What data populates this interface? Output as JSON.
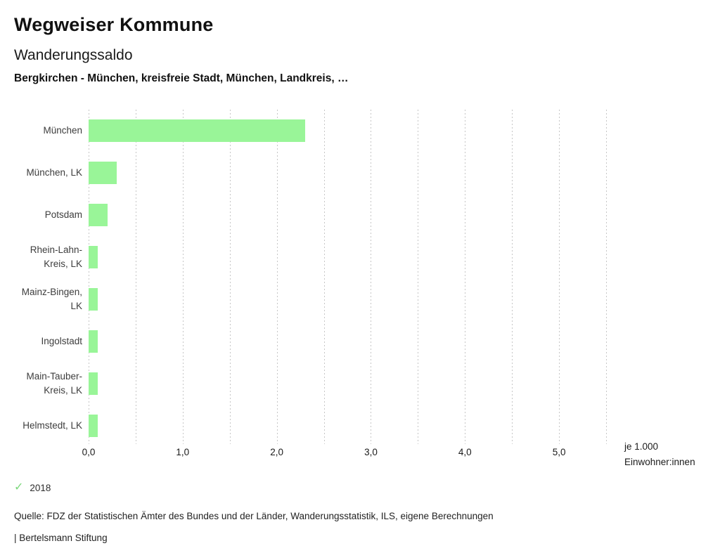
{
  "header": {
    "title": "Wegweiser Kommune",
    "subtitle": "Wanderungssaldo",
    "selection": "Bergkirchen - München, kreisfreie Stadt, München, Landkreis, …"
  },
  "chart_data": {
    "type": "bar",
    "orientation": "horizontal",
    "title": "Wanderungssaldo",
    "subtitle": "Bergkirchen - München, kreisfreie Stadt, München, Landkreis, …",
    "categories": [
      "München",
      "München, LK",
      "Potsdam",
      "Rhein-Lahn-Kreis, LK",
      "Mainz-Bingen, LK",
      "Ingolstadt",
      "Main-Tauber-Kreis, LK",
      "Helmstedt, LK"
    ],
    "category_label_lines": [
      [
        "München"
      ],
      [
        "München, LK"
      ],
      [
        "Potsdam"
      ],
      [
        "Rhein-Lahn-",
        "Kreis, LK"
      ],
      [
        "Mainz-Bingen,",
        "LK"
      ],
      [
        "Ingolstadt"
      ],
      [
        "Main-Tauber-",
        "Kreis, LK"
      ],
      [
        "Helmstedt, LK"
      ]
    ],
    "series": [
      {
        "name": "2018",
        "values": [
          2.3,
          0.3,
          0.2,
          0.1,
          0.1,
          0.1,
          0.1,
          0.1
        ]
      }
    ],
    "xlabel": "je 1.000 Einwohner:innen",
    "xlabel_lines": [
      "je 1.000",
      "Einwohner:innen"
    ],
    "xlim": [
      0,
      5.5
    ],
    "x_ticks": [
      {
        "value": 0,
        "label": "0,0"
      },
      {
        "value": 1,
        "label": "1,0"
      },
      {
        "value": 2,
        "label": "2,0"
      },
      {
        "value": 3,
        "label": "3,0"
      },
      {
        "value": 4,
        "label": "4,0"
      },
      {
        "value": 5,
        "label": "5,0"
      }
    ],
    "gridline_step": 0.5,
    "grid": true,
    "legend_position": "bottom-left"
  },
  "colors": {
    "bar": "#99f598",
    "check": "#7bd87b",
    "grid": "#c6c6c6"
  },
  "icons": {
    "check": "✓"
  },
  "footer": {
    "source": "Quelle: FDZ der Statistischen Ämter des Bundes und der Länder, Wanderungsstatistik, ILS, eigene Berechnungen",
    "branding": "| Bertelsmann Stiftung"
  }
}
